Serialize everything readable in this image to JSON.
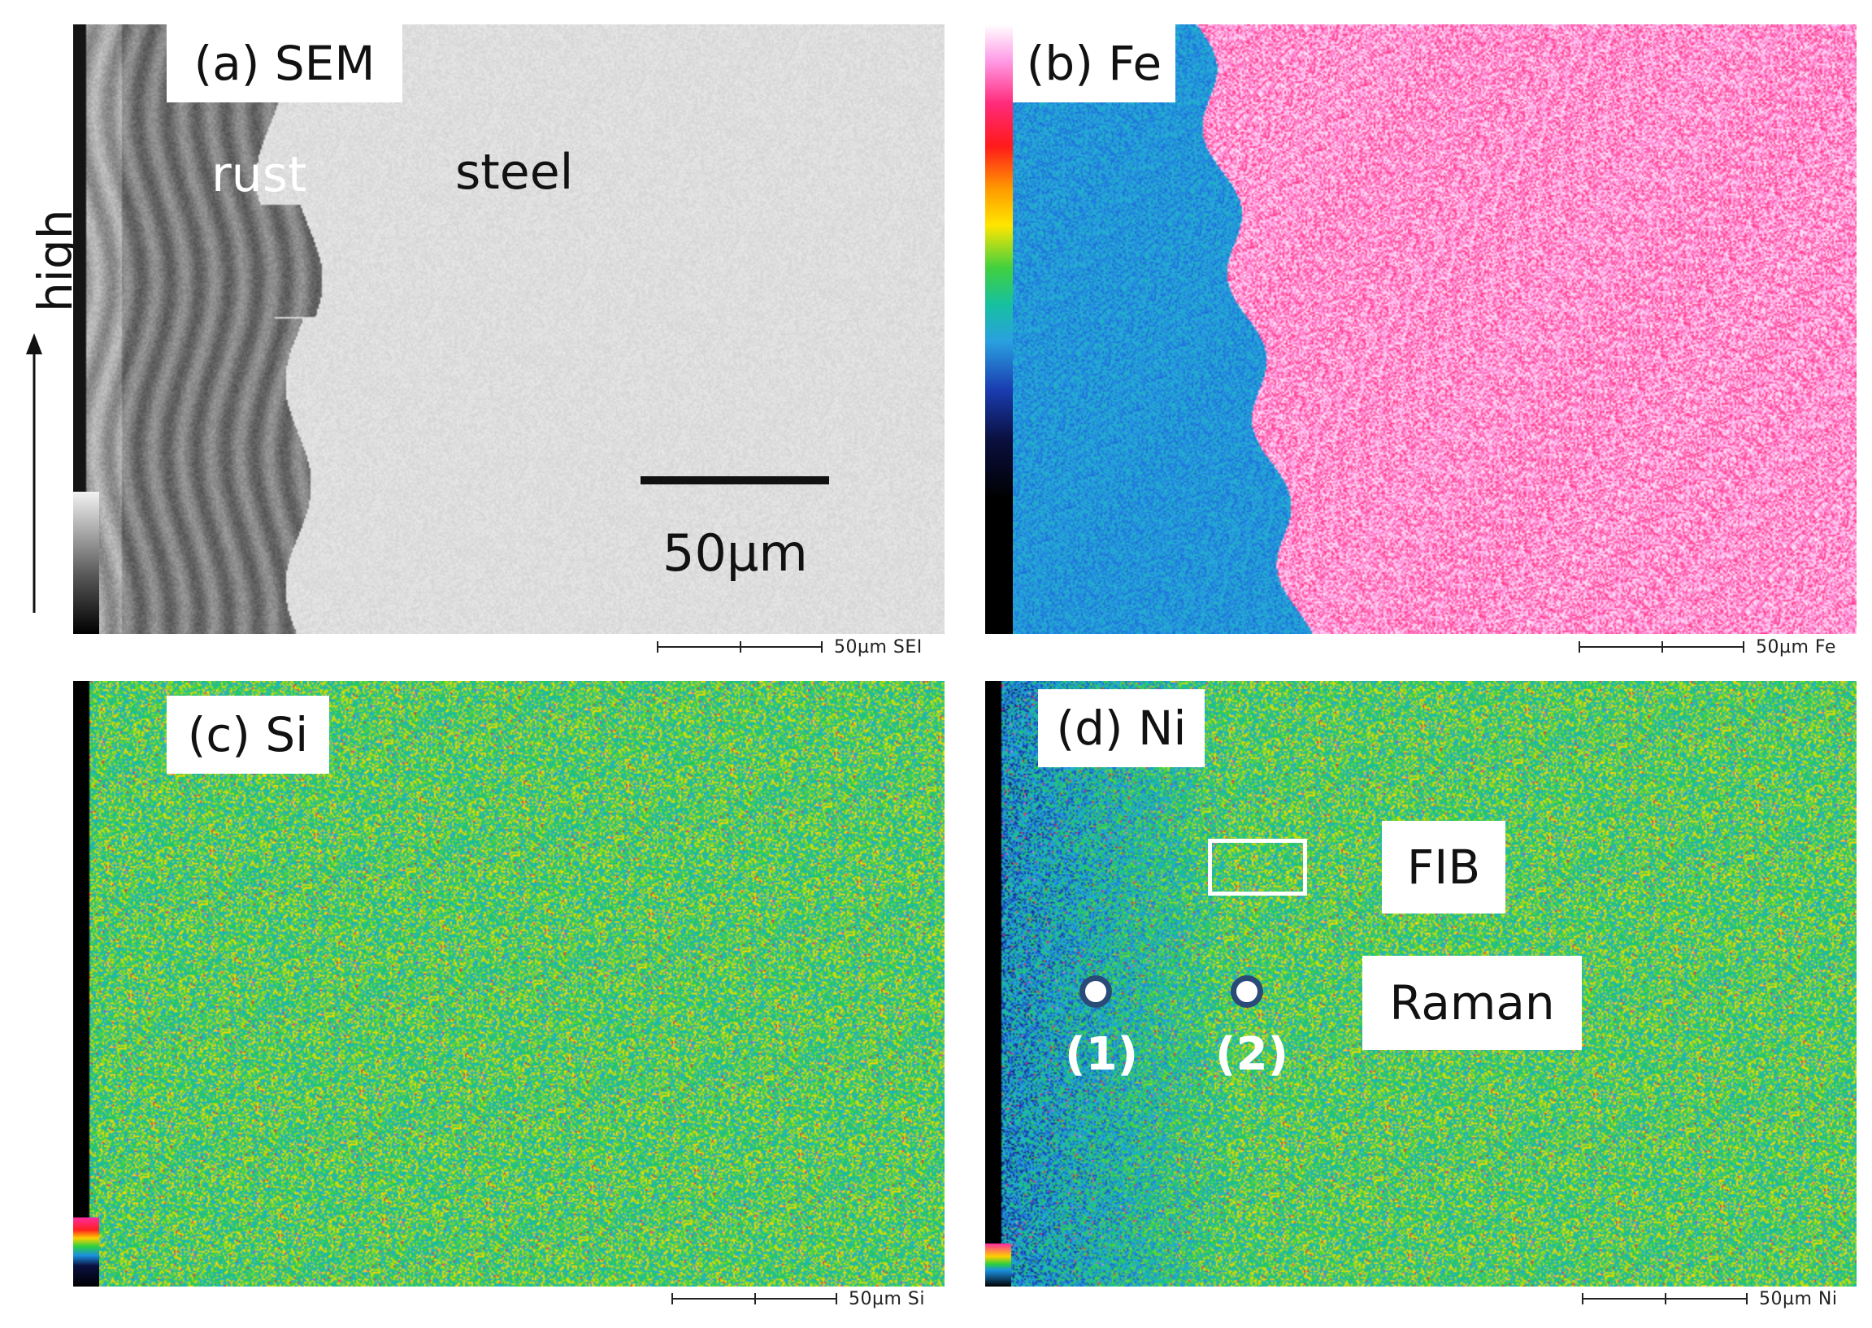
{
  "side_axis": {
    "label": "high",
    "arrow": "up-arrow"
  },
  "panels": {
    "a": {
      "title": "(a) SEM",
      "annotations": {
        "rust": "rust",
        "steel": "steel",
        "scalebar": "50µm"
      },
      "scale_caption": "50µm  SEI"
    },
    "b": {
      "title": "(b) Fe",
      "scale_caption": "50µm  Fe"
    },
    "c": {
      "title": "(c) Si",
      "scale_caption": "50µm  Si"
    },
    "d": {
      "title": "(d) Ni",
      "boxes": {
        "fib": "FIB",
        "raman": "Raman"
      },
      "points": [
        "(1)",
        "(2)"
      ],
      "scale_caption": "50µm  Ni"
    }
  },
  "colors": {
    "fe_oxide": "#3fa6d8",
    "fe_steel": "#f0155a",
    "map_background": "#2ea87a",
    "marker_ring": "#2a4a78"
  }
}
